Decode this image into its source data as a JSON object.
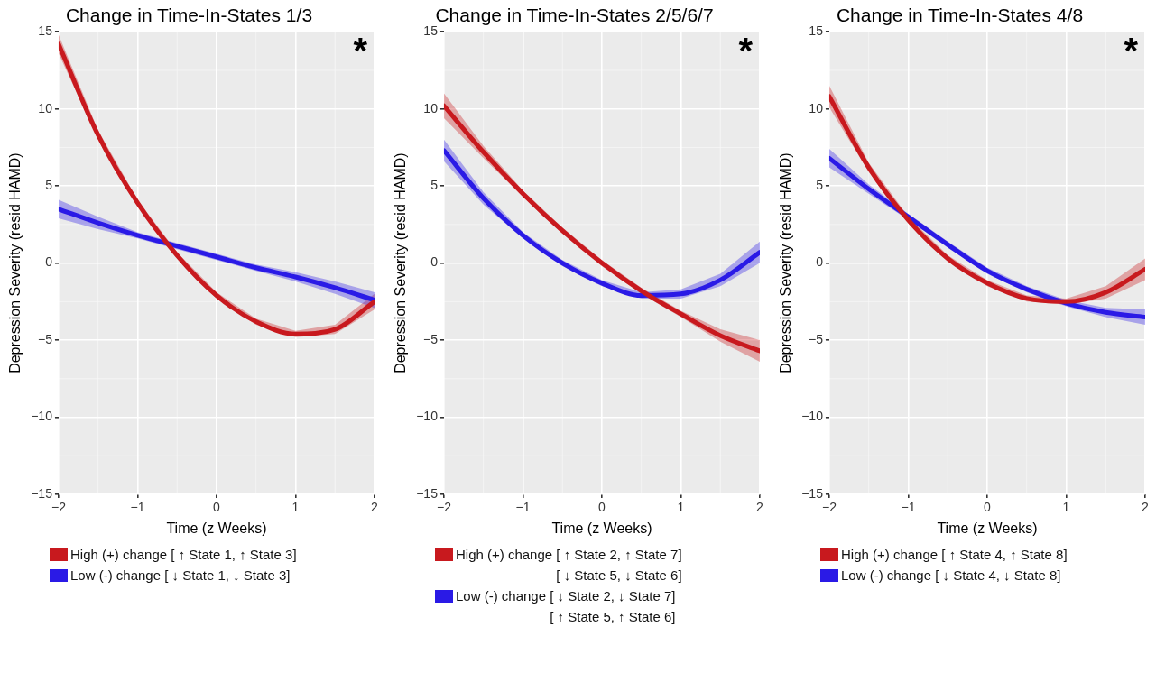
{
  "chart_data": [
    {
      "type": "line",
      "title": "Change in Time-In-States 1/3",
      "xlabel": "Time (z Weeks)",
      "ylabel": "Depression Severity (resid HAMD)",
      "x": [
        -2,
        -1.5,
        -1,
        -0.5,
        0,
        0.5,
        1,
        1.5,
        2
      ],
      "xlim": [
        -2,
        2
      ],
      "xticks": [
        -2,
        -1,
        0,
        1,
        2
      ],
      "ylim": [
        -15,
        15
      ],
      "yticks": [
        -15,
        -10,
        -5,
        0,
        5,
        10,
        15
      ],
      "grid": true,
      "legend": "bottom",
      "marker": "none",
      "annotations": [
        "*"
      ],
      "series": [
        {
          "name": "High (+) change [ ↑ State 1, ↑ State 3]",
          "color": "#c8191e",
          "values": [
            14.2,
            8.3,
            3.9,
            0.5,
            -2.1,
            -3.8,
            -4.6,
            -4.3,
            -2.5
          ],
          "lower": [
            13.6,
            8.0,
            3.7,
            0.3,
            -2.3,
            -4.0,
            -4.8,
            -4.6,
            -3.0
          ],
          "upper": [
            14.8,
            8.6,
            4.1,
            0.7,
            -1.9,
            -3.6,
            -4.4,
            -4.0,
            -2.0
          ]
        },
        {
          "name": "Low (-) change [ ↓ State 1, ↓ State 3]",
          "color": "#2a1ae6",
          "values": [
            3.5,
            2.6,
            1.8,
            1.1,
            0.4,
            -0.3,
            -0.9,
            -1.6,
            -2.4
          ],
          "lower": [
            2.9,
            2.2,
            1.6,
            0.9,
            0.2,
            -0.5,
            -1.2,
            -2.0,
            -2.9
          ],
          "upper": [
            4.1,
            3.0,
            2.0,
            1.3,
            0.6,
            -0.1,
            -0.6,
            -1.2,
            -1.9
          ]
        }
      ]
    },
    {
      "type": "line",
      "title": "Change in Time-In-States 2/5/6/7",
      "xlabel": "Time (z Weeks)",
      "ylabel": "Depression Severity (resid HAMD)",
      "x": [
        -2,
        -1.5,
        -1,
        -0.5,
        0,
        0.5,
        1,
        1.5,
        2
      ],
      "xlim": [
        -2,
        2
      ],
      "xticks": [
        -2,
        -1,
        0,
        1,
        2
      ],
      "ylim": [
        -15,
        15
      ],
      "yticks": [
        -15,
        -10,
        -5,
        0,
        5,
        10,
        15
      ],
      "grid": true,
      "legend": "bottom",
      "marker": "none",
      "annotations": [
        "*"
      ],
      "series": [
        {
          "name": "High (+) change [ ↑ State 2, ↑ State 7]\n[ ↓ State 5, ↓ State 6]",
          "color": "#c8191e",
          "values": [
            10.2,
            7.2,
            4.5,
            2.1,
            0.0,
            -1.8,
            -3.3,
            -4.7,
            -5.7
          ],
          "lower": [
            9.4,
            6.8,
            4.3,
            1.9,
            -0.2,
            -2.0,
            -3.5,
            -5.1,
            -6.4
          ],
          "upper": [
            11.0,
            7.6,
            4.7,
            2.3,
            0.2,
            -1.6,
            -3.1,
            -4.3,
            -5.0
          ]
        },
        {
          "name": "Low (-) change [ ↓ State 2, ↓ State 7]\n[ ↑ State 5, ↑ State 6]",
          "color": "#2a1ae6",
          "values": [
            7.3,
            4.2,
            1.8,
            0.0,
            -1.3,
            -2.1,
            -2.0,
            -1.1,
            0.7
          ],
          "lower": [
            6.6,
            3.8,
            1.6,
            -0.2,
            -1.5,
            -2.3,
            -2.3,
            -1.5,
            0.0
          ],
          "upper": [
            8.0,
            4.6,
            2.0,
            0.2,
            -1.1,
            -1.9,
            -1.7,
            -0.7,
            1.4
          ]
        }
      ]
    },
    {
      "type": "line",
      "title": "Change in Time-In-States 4/8",
      "xlabel": "Time (z Weeks)",
      "ylabel": "Depression Severity (resid HAMD)",
      "x": [
        -2,
        -1.5,
        -1,
        -0.5,
        0,
        0.5,
        1,
        1.5,
        2
      ],
      "xlim": [
        -2,
        2
      ],
      "xticks": [
        -2,
        -1,
        0,
        1,
        2
      ],
      "ylim": [
        -15,
        15
      ],
      "yticks": [
        -15,
        -10,
        -5,
        0,
        5,
        10,
        15
      ],
      "grid": true,
      "legend": "bottom",
      "marker": "none",
      "annotations": [
        "*"
      ],
      "series": [
        {
          "name": "High (+) change [ ↑ State 4, ↑ State 8]",
          "color": "#c8191e",
          "values": [
            10.8,
            6.2,
            2.8,
            0.3,
            -1.3,
            -2.3,
            -2.5,
            -1.9,
            -0.4
          ],
          "lower": [
            10.1,
            5.9,
            2.6,
            0.1,
            -1.5,
            -2.5,
            -2.7,
            -2.3,
            -1.1
          ],
          "upper": [
            11.5,
            6.5,
            3.0,
            0.5,
            -1.1,
            -2.1,
            -2.3,
            -1.5,
            0.3
          ]
        },
        {
          "name": "Low (-) change [ ↓ State 4, ↓ State 8]",
          "color": "#2a1ae6",
          "values": [
            6.8,
            4.8,
            3.0,
            1.2,
            -0.5,
            -1.7,
            -2.6,
            -3.2,
            -3.5
          ],
          "lower": [
            6.2,
            4.5,
            2.8,
            1.0,
            -0.7,
            -1.9,
            -2.8,
            -3.5,
            -4.0
          ],
          "upper": [
            7.4,
            5.1,
            3.2,
            1.4,
            -0.3,
            -1.5,
            -2.4,
            -2.9,
            -3.0
          ]
        }
      ]
    }
  ]
}
